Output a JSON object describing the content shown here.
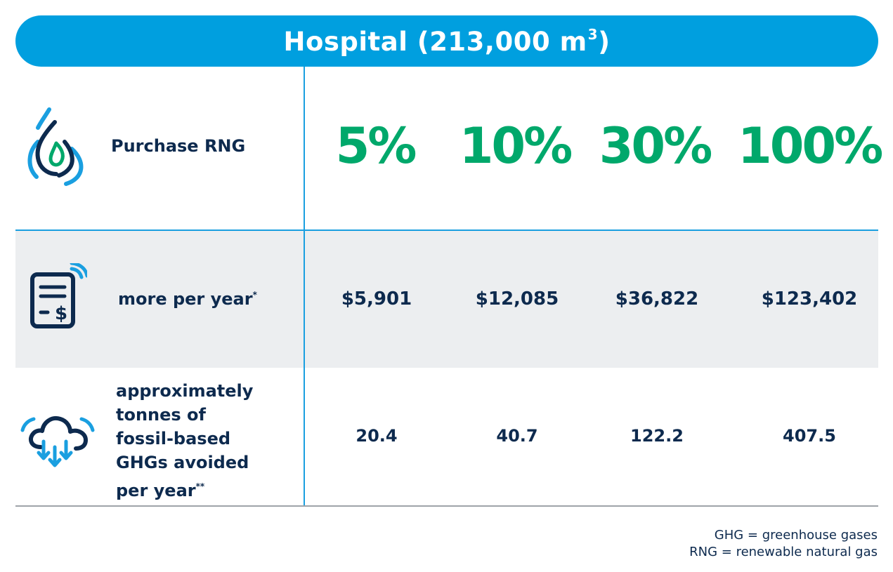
{
  "header": {
    "title_main": "Hospital (213,000 m",
    "title_sup": "3",
    "title_end": ")"
  },
  "rows": {
    "rng": {
      "label": "Purchase RNG",
      "icon": "flame-icon",
      "percentages": [
        "5%",
        "10%",
        "30%",
        "100%"
      ]
    },
    "cost": {
      "label": "more per year",
      "label_mark": "*",
      "icon": "bill-icon",
      "values": [
        "$5,901",
        "$12,085",
        "$36,822",
        "$123,402"
      ]
    },
    "ghg": {
      "label_lines": [
        "approximately",
        "tonnes of",
        "fossil-based",
        "GHGs avoided",
        "per year"
      ],
      "label_mark": "**",
      "icon": "cloud-down-icon",
      "values": [
        "20.4",
        "40.7",
        "122.2",
        "407.5"
      ]
    }
  },
  "notes": [
    "GHG = greenhouse gases",
    "RNG = renewable natural gas"
  ],
  "colors": {
    "header": "#009fdf",
    "accent_green": "#00a86b",
    "navy": "#0d2a4e",
    "row_gray": "#eceef0"
  }
}
